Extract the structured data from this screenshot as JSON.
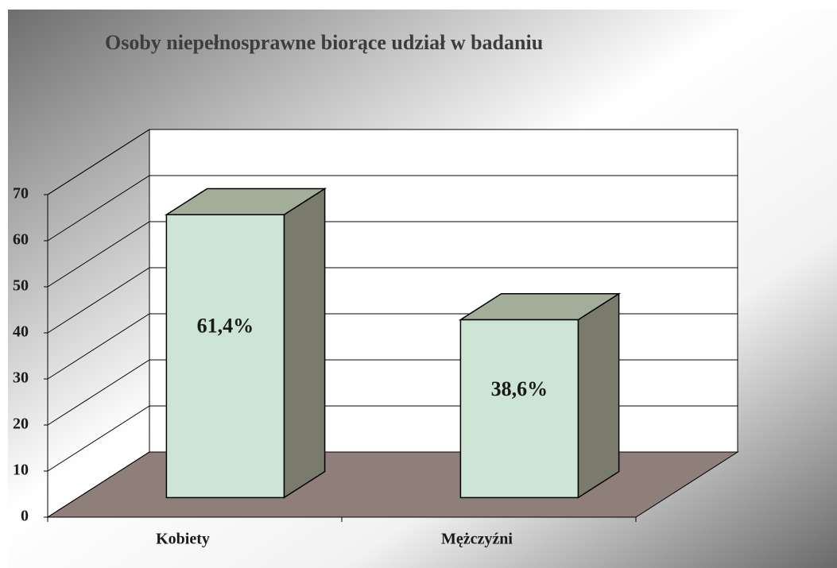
{
  "chart_data": {
    "type": "bar3d",
    "title": "Osoby niepełnosprawne biorące udział w badaniu",
    "categories": [
      "Kobiety",
      "Mężczyźni"
    ],
    "values": [
      61.4,
      38.6
    ],
    "value_labels": [
      "61,4%",
      "38,6%"
    ],
    "color": "#cce5d4",
    "ylim": [
      0,
      70
    ],
    "yticks": [
      0,
      10,
      20,
      30,
      40,
      50,
      60,
      70
    ],
    "grid": true
  }
}
